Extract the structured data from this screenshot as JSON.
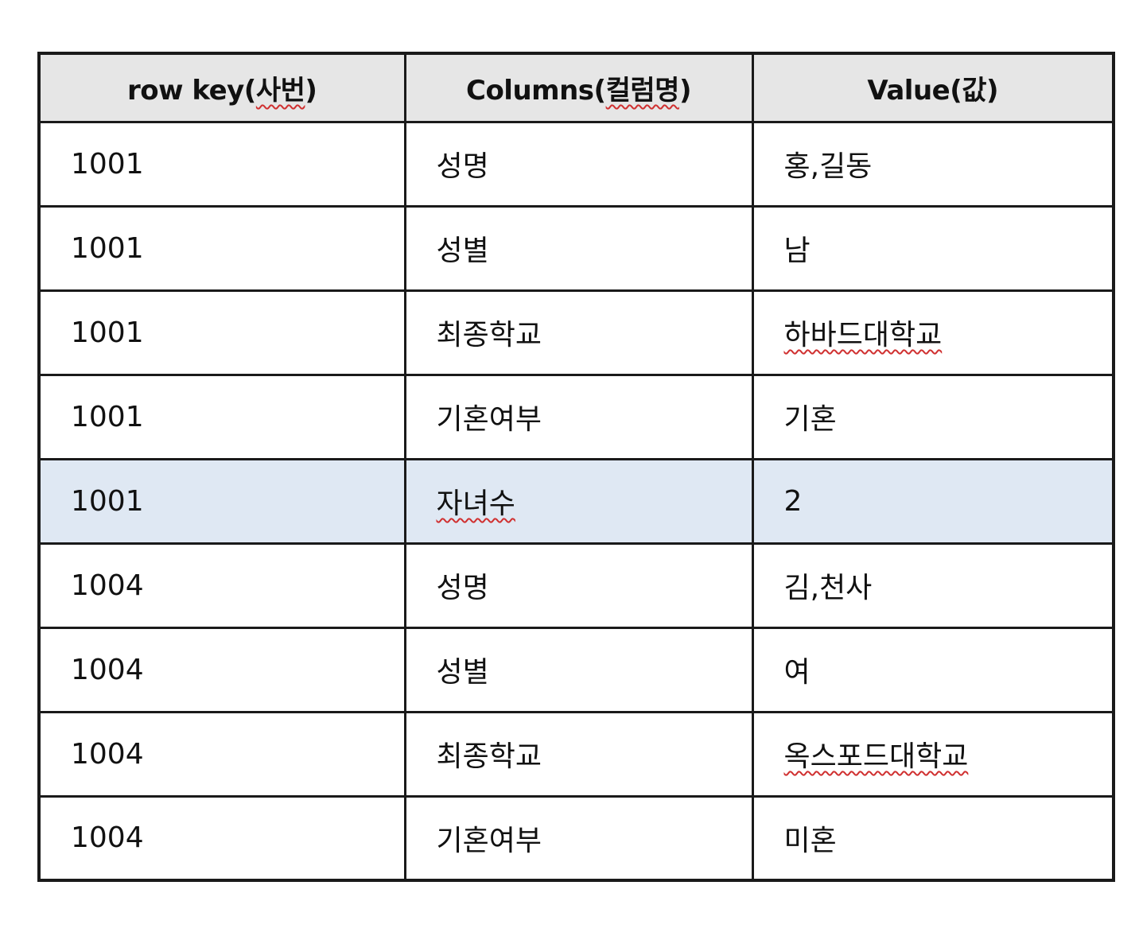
{
  "table": {
    "headers": [
      {
        "prefix": "row key(",
        "underlined": "사번",
        "suffix": ")"
      },
      {
        "prefix": "Columns(",
        "underlined": "컬럼명",
        "suffix": ")"
      },
      {
        "prefix": "Value(",
        "underlined": "",
        "suffix": "값)"
      }
    ],
    "rows": [
      {
        "row_key": "1001",
        "column": "성명",
        "value": "홍,길동",
        "column_flagged": false,
        "value_flagged": false,
        "highlighted": false
      },
      {
        "row_key": "1001",
        "column": "성별",
        "value": "남",
        "column_flagged": false,
        "value_flagged": false,
        "highlighted": false
      },
      {
        "row_key": "1001",
        "column": "최종학교",
        "value": "하바드대학교",
        "column_flagged": false,
        "value_flagged": true,
        "highlighted": false
      },
      {
        "row_key": "1001",
        "column": "기혼여부",
        "value": "기혼",
        "column_flagged": false,
        "value_flagged": false,
        "highlighted": false
      },
      {
        "row_key": "1001",
        "column": "자녀수",
        "value": "2",
        "column_flagged": true,
        "value_flagged": false,
        "highlighted": true
      },
      {
        "row_key": "1004",
        "column": "성명",
        "value": "김,천사",
        "column_flagged": false,
        "value_flagged": false,
        "highlighted": false
      },
      {
        "row_key": "1004",
        "column": "성별",
        "value": "여",
        "column_flagged": false,
        "value_flagged": false,
        "highlighted": false
      },
      {
        "row_key": "1004",
        "column": "최종학교",
        "value": "옥스포드대학교",
        "column_flagged": false,
        "value_flagged": true,
        "highlighted": false
      },
      {
        "row_key": "1004",
        "column": "기혼여부",
        "value": "미혼",
        "column_flagged": false,
        "value_flagged": false,
        "highlighted": false
      }
    ],
    "highlight_color": "#dfe8f3",
    "header_background": "#e6e6e6",
    "spellcheck_color": "#d03030"
  }
}
